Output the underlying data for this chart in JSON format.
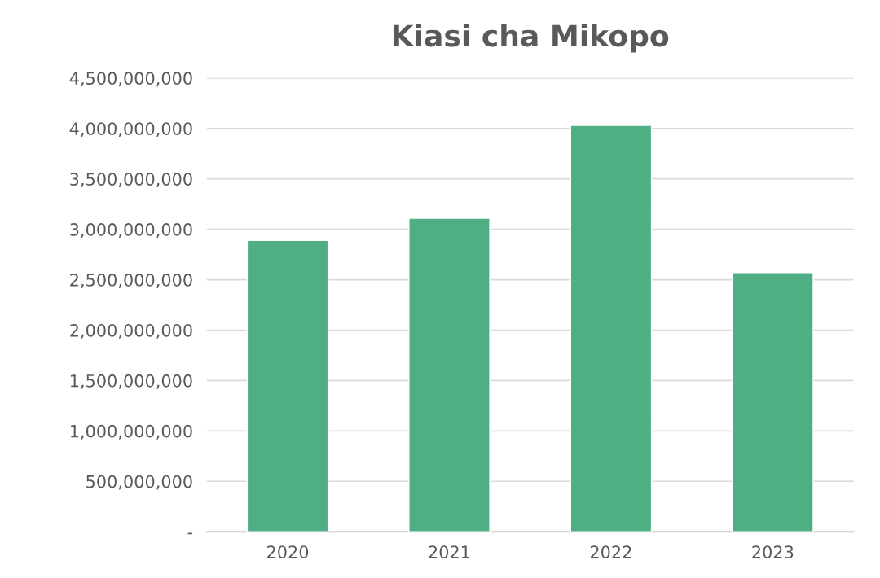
{
  "chart_data": {
    "type": "bar",
    "title": "Kiasi cha Mikopo",
    "categories": [
      "2020",
      "2021",
      "2022",
      "2023"
    ],
    "values": [
      2890000000,
      3110000000,
      4030000000,
      2570000000
    ],
    "color": "#4fae84",
    "ylim": [
      0,
      4500000000
    ],
    "yticks": [
      {
        "value": 0,
        "label": "-"
      },
      {
        "value": 500000000,
        "label": "500,000,000"
      },
      {
        "value": 1000000000,
        "label": "1,000,000,000"
      },
      {
        "value": 1500000000,
        "label": "1,500,000,000"
      },
      {
        "value": 2000000000,
        "label": "2,000,000,000"
      },
      {
        "value": 2500000000,
        "label": "2,500,000,000"
      },
      {
        "value": 3000000000,
        "label": "3,000,000,000"
      },
      {
        "value": 3500000000,
        "label": "3,500,000,000"
      },
      {
        "value": 4000000000,
        "label": "4,000,000,000"
      },
      {
        "value": 4500000000,
        "label": "4,500,000,000"
      }
    ],
    "grid": "y",
    "legend": false
  }
}
